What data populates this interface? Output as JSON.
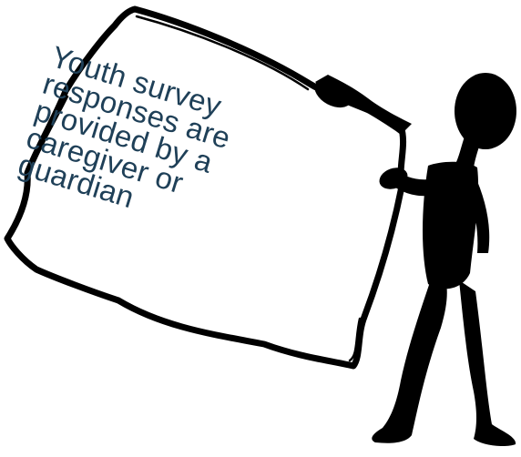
{
  "sign": {
    "lines": [
      "Youth survey",
      "responses are",
      "provided by a",
      "caregiver or",
      "guardian"
    ]
  },
  "colors": {
    "text": "#1f4058",
    "outline": "#000000",
    "figure": "#000000",
    "background": "#ffffff"
  },
  "icons": {
    "figure": "stick-figure-icon",
    "sign": "paper-sign-icon"
  }
}
